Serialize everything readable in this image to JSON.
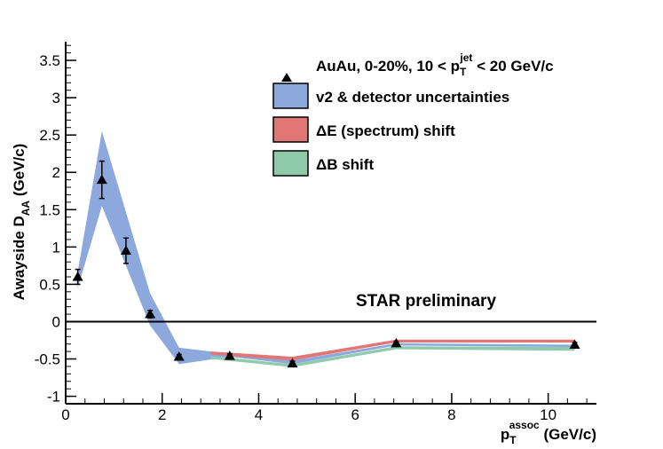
{
  "chart_data": {
    "type": "scatter",
    "title": "",
    "xlabel": {
      "main": "p",
      "sub": "T",
      "sup": "assoc",
      "unit": "(GeV/c)"
    },
    "ylabel": {
      "main": "Awayside D",
      "sub": "AA",
      "unit": "(GeV/c)"
    },
    "xlim": [
      0,
      11
    ],
    "ylim": [
      -1.1,
      3.75
    ],
    "x_ticks": [
      0,
      2,
      4,
      6,
      8,
      10
    ],
    "y_ticks": [
      -1,
      -0.5,
      0,
      0.5,
      1,
      1.5,
      2,
      2.5,
      3,
      3.5
    ],
    "x_tick_labels": [
      "0",
      "2",
      "4",
      "6",
      "8",
      "10"
    ],
    "y_tick_labels": [
      "-1",
      "-0.5",
      "0",
      "0.5",
      "1",
      "1.5",
      "2",
      "2.5",
      "3",
      "3.5"
    ],
    "annotation": "STAR preliminary",
    "zero_line": true,
    "legend_placement": "top-right",
    "points": {
      "name": "AuAu, 0-20%, 10 < p_T^jet < 20 GeV/c",
      "legend": {
        "pre": "AuAu, 0-20%, 10 < p",
        "sub": "T",
        "sup": "jet",
        "post": " < 20 GeV/c"
      },
      "x": [
        0.25,
        0.75,
        1.25,
        1.75,
        2.35,
        3.4,
        4.7,
        6.85,
        10.55
      ],
      "y": [
        0.6,
        1.9,
        0.95,
        0.1,
        -0.47,
        -0.46,
        -0.56,
        -0.29,
        -0.31
      ],
      "yerr": [
        0.1,
        0.25,
        0.17,
        0.05,
        0.03,
        0.03,
        0.03,
        0.02,
        0.03
      ]
    },
    "bands": [
      {
        "name": "v2 & detector uncertainties",
        "color": "#8ca8dc",
        "x": [
          0.25,
          0.75,
          1.75,
          2.35,
          3.4,
          4.7,
          6.85,
          10.55
        ],
        "upper": [
          0.67,
          2.55,
          0.38,
          -0.35,
          -0.43,
          -0.52,
          -0.29,
          -0.31
        ],
        "lower": [
          0.45,
          1.55,
          -0.05,
          -0.57,
          -0.47,
          -0.57,
          -0.32,
          -0.34
        ]
      },
      {
        "name": "ΔE (spectrum) shift",
        "color": "#e07775",
        "x": [
          3.0,
          4.7,
          6.85,
          10.55
        ],
        "upper": [
          -0.4,
          -0.47,
          -0.24,
          -0.24
        ],
        "lower": [
          -0.44,
          -0.52,
          -0.28,
          -0.28
        ]
      },
      {
        "name": "ΔB shift",
        "color": "#8fcbab",
        "x": [
          3.0,
          4.7,
          6.85,
          10.55
        ],
        "upper": [
          -0.46,
          -0.57,
          -0.33,
          -0.34
        ],
        "lower": [
          -0.5,
          -0.61,
          -0.37,
          -0.39
        ]
      }
    ]
  }
}
